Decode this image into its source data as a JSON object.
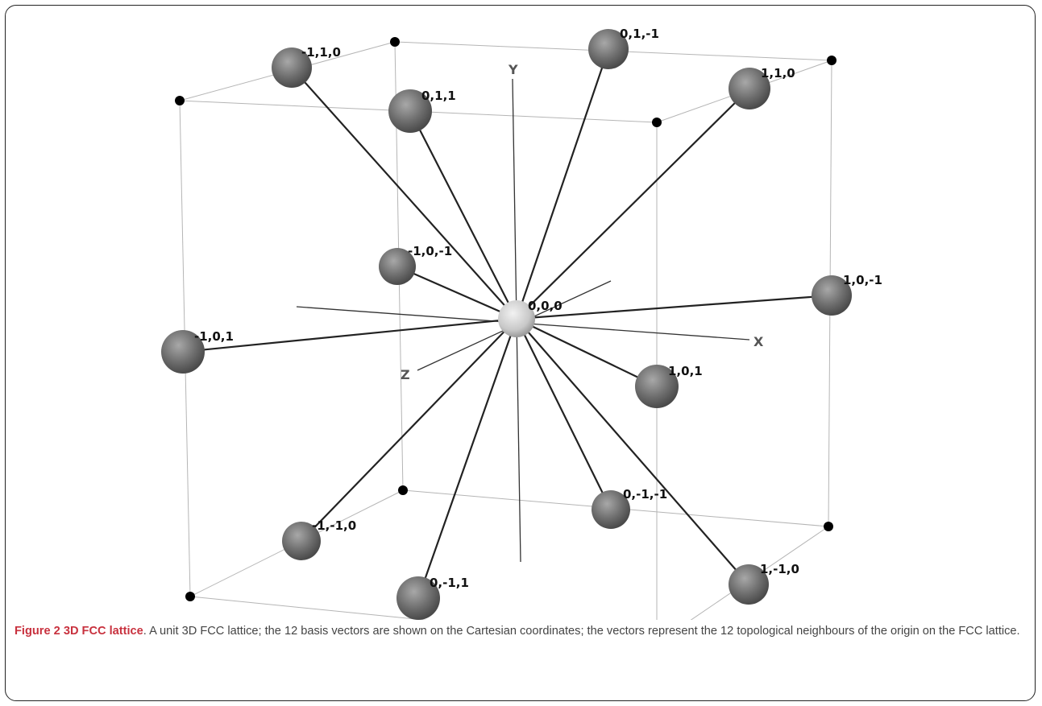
{
  "caption": {
    "figure_label": "Figure 2",
    "title": "3D FCC lattice",
    "text": ". A unit 3D FCC lattice; the 12 basis vectors are shown on the Cartesian coordinates; the vectors represent the 12 topological neighbours of the origin on the FCC lattice."
  },
  "axes": {
    "x": "X",
    "y": "Y",
    "z": "Z"
  },
  "origin_label": "0,0,0",
  "neighbour_labels": {
    "m1_1_0": "-1,1,0",
    "0_1_m1": "0,1,-1",
    "0_1_1": "0,1,1",
    "1_1_0": "1,1,0",
    "m1_0_m1": "-1,0,-1",
    "1_0_m1": "1,0,-1",
    "m1_0_1": "-1,0,1",
    "1_0_1": "1,0,1",
    "0_m1_m1": "0,-1,-1",
    "m1_m1_0": "-1,-1,0",
    "1_m1_0": "1,-1,0",
    "0_m1_1": "0,-1,1"
  },
  "colors": {
    "sphere": "#6e6e6e",
    "origin": "#d6d6d6",
    "vector": "#222222",
    "cube_edge": "#bbbbbb",
    "caption_accent": "#c8313e"
  }
}
